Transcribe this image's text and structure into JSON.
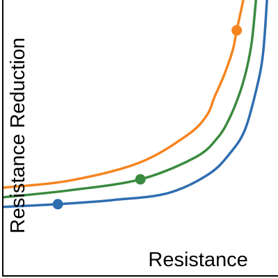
{
  "chart_data": {
    "type": "line",
    "xlabel": "Resistance",
    "ylabel": "Resistance Reduction",
    "xlim": [
      0,
      100
    ],
    "ylim": [
      0,
      100
    ],
    "series": [
      {
        "color": "#2f6db0",
        "x": [
          0,
          20,
          40,
          60,
          75,
          83,
          88,
          92,
          94.5,
          96
        ],
        "values": [
          25,
          26,
          27.5,
          30,
          37,
          45,
          53,
          67,
          80,
          100
        ],
        "marker_index": 1
      },
      {
        "color": "#3a8a3f",
        "x": [
          0,
          24,
          50,
          70,
          78,
          82.3,
          86,
          88.6,
          90.5,
          92
        ],
        "values": [
          28.5,
          31,
          35,
          43,
          50,
          57,
          66,
          75,
          85,
          100
        ],
        "marker_index": 2
      },
      {
        "color": "#f5841f",
        "x": [
          0,
          24,
          49.5,
          67,
          74,
          77,
          80.5,
          83.6,
          85,
          87.4
        ],
        "values": [
          32,
          34.5,
          41,
          51,
          58,
          65,
          73,
          82,
          89,
          100
        ],
        "marker_index": 8
      }
    ]
  }
}
